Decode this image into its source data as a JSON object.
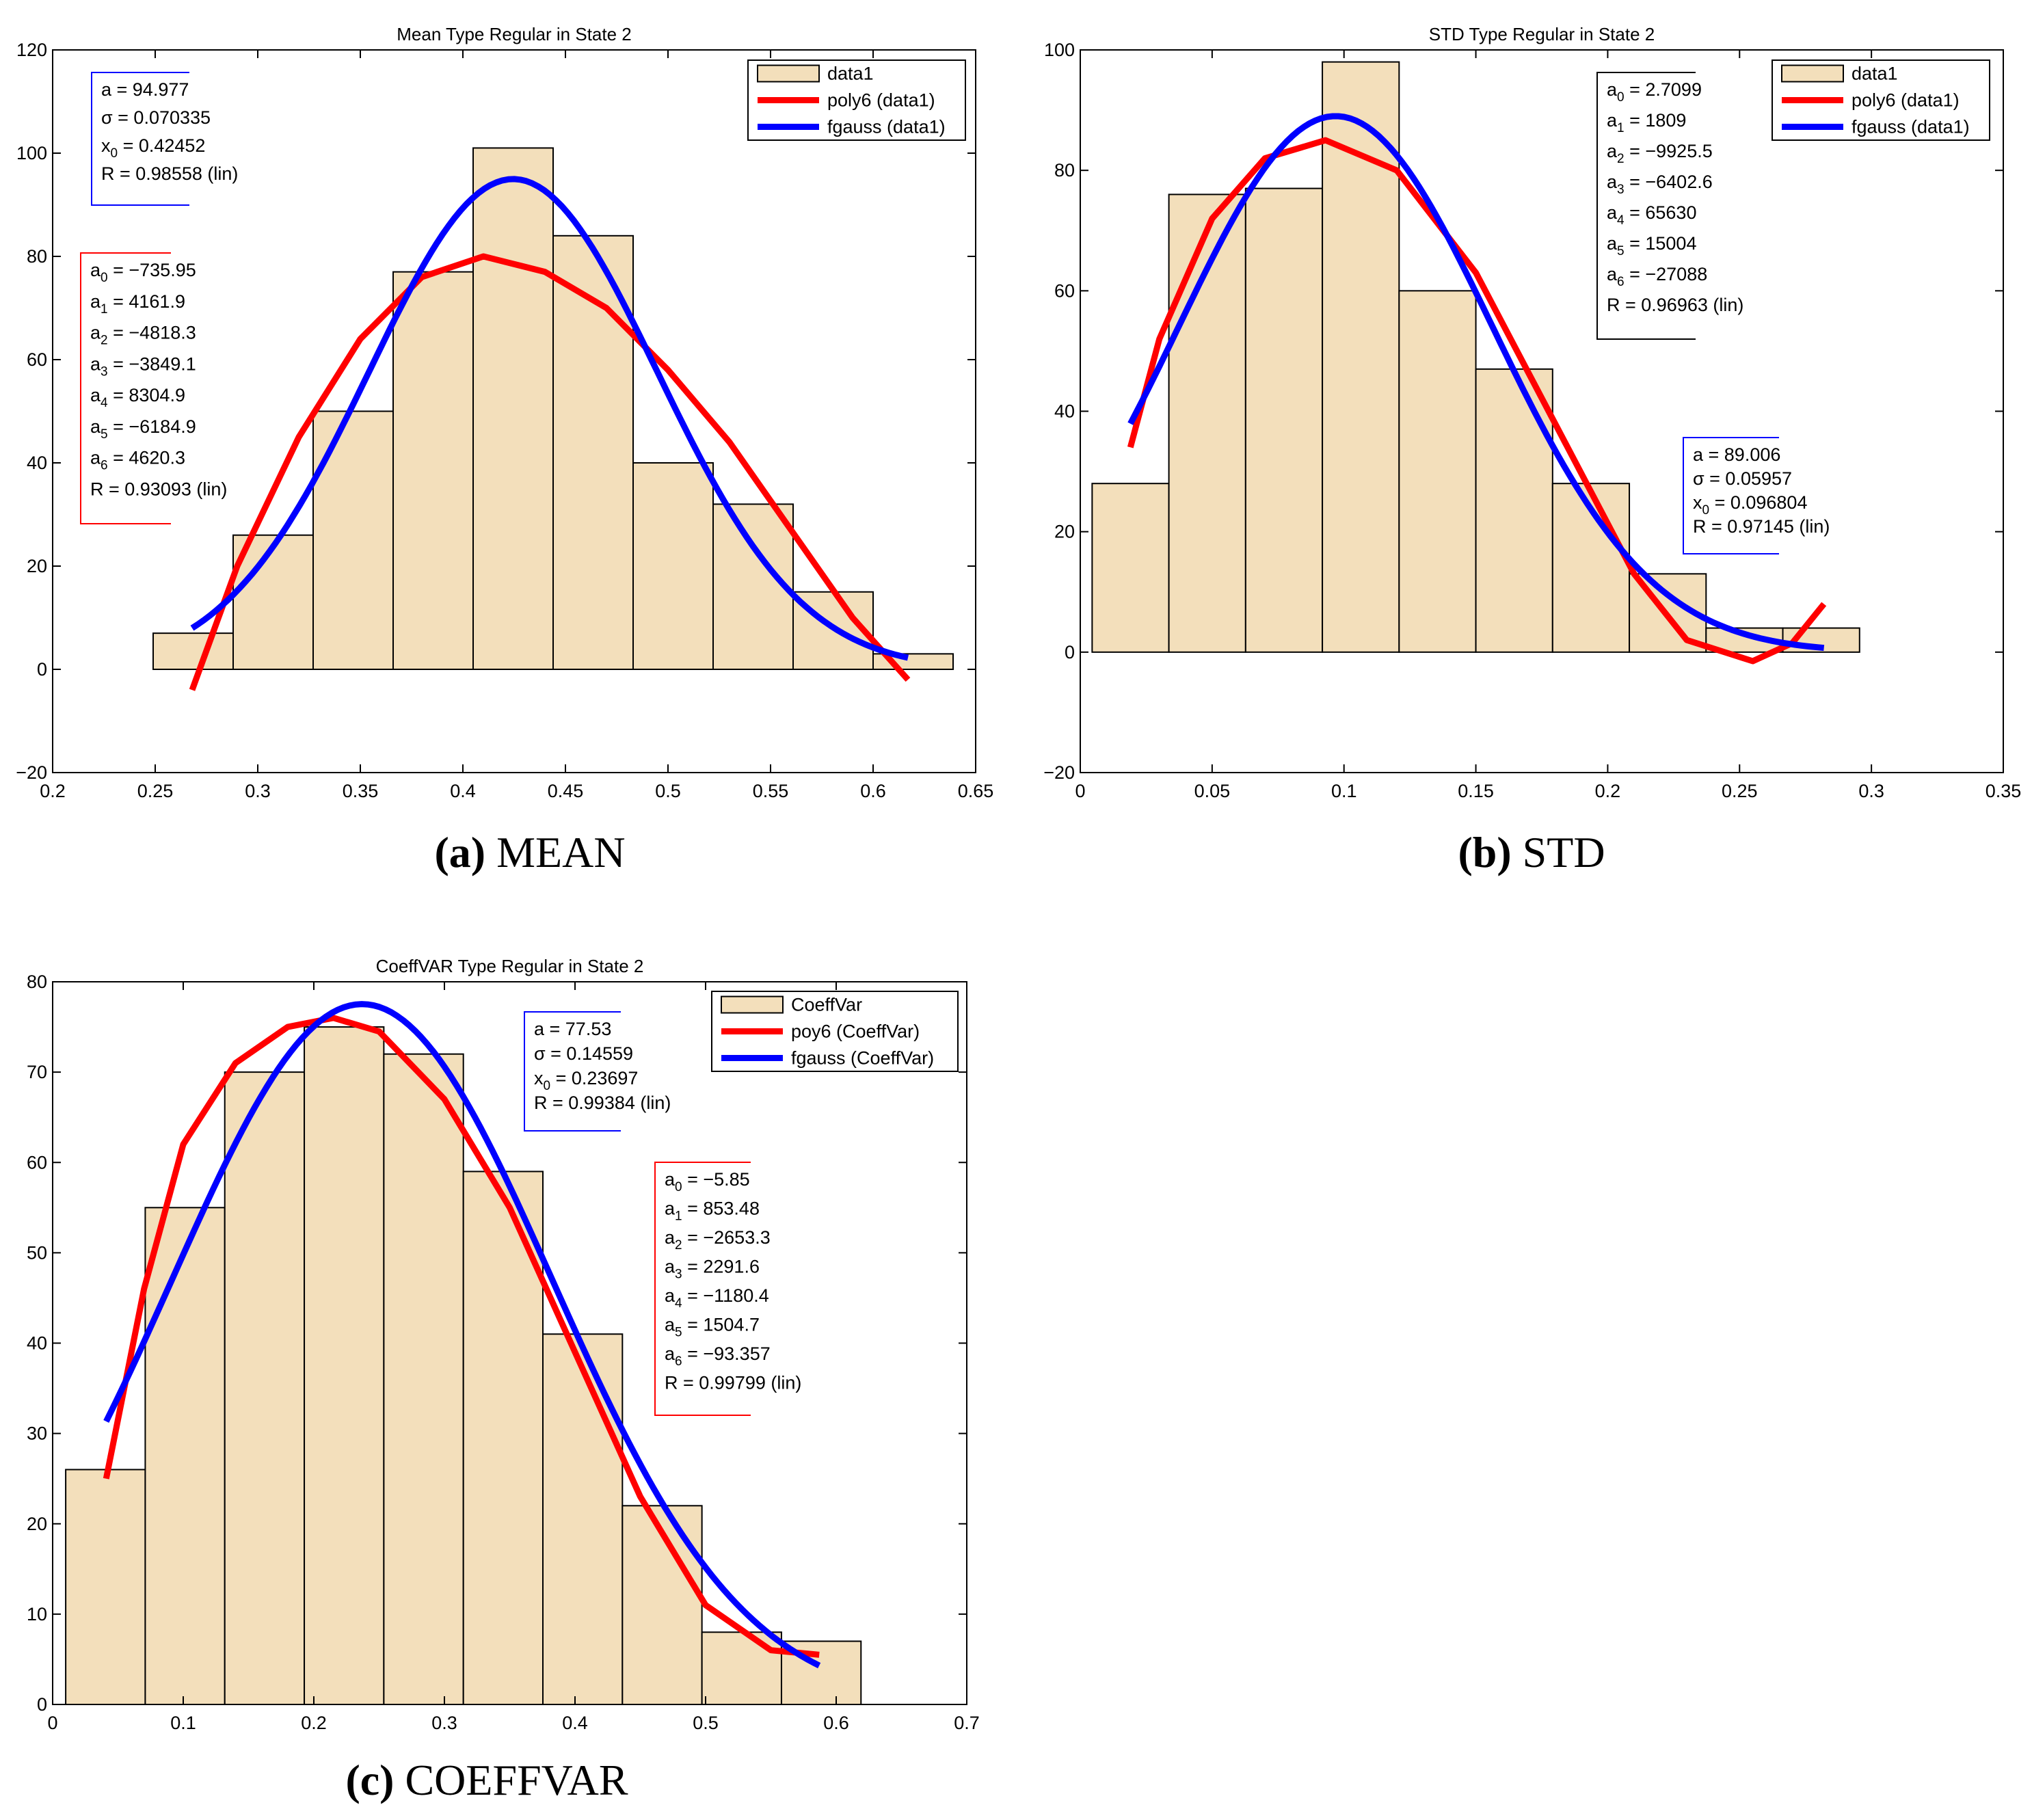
{
  "figure": {
    "captions": [
      {
        "label": "(a)",
        "text": " MEAN"
      },
      {
        "label": "(b)",
        "text": " STD"
      },
      {
        "label": "(c)",
        "text": " COEFFVAR"
      }
    ]
  },
  "colors": {
    "bar_fill": "#f3dfbb",
    "poly": "#ff0000",
    "gauss": "#0000ff",
    "axis": "#000000"
  },
  "chart_data": [
    {
      "type": "bar",
      "title": "Mean Type Regular in State 2",
      "bin_edges": [
        0.249,
        0.288,
        0.327,
        0.366,
        0.405,
        0.444,
        0.483,
        0.522,
        0.561,
        0.6,
        0.639
      ],
      "values": [
        7,
        26,
        50,
        77,
        101,
        84,
        40,
        32,
        15,
        3
      ],
      "xlim": [
        0.2,
        0.65
      ],
      "ylim": [
        -20,
        120
      ],
      "xticks": [
        0.2,
        0.25,
        0.3,
        0.35,
        0.4,
        0.45,
        0.5,
        0.55,
        0.6,
        0.65
      ],
      "xticklabels": [
        "0.2",
        "0.25",
        "0.3",
        "0.35",
        "0.4",
        "0.45",
        "0.5",
        "0.55",
        "0.6",
        "0.65"
      ],
      "yticks": [
        -20,
        0,
        20,
        40,
        60,
        80,
        100,
        120
      ],
      "yticklabels": [
        "−20",
        "0",
        "20",
        "40",
        "60",
        "80",
        "100",
        "120"
      ],
      "legend": {
        "placement": "top-right",
        "entries": [
          "data1",
          "poly6 (data1)",
          "fgauss (data1)"
        ]
      },
      "poly_curve": {
        "x": [
          0.268,
          0.29,
          0.32,
          0.35,
          0.38,
          0.41,
          0.44,
          0.47,
          0.5,
          0.53,
          0.56,
          0.59,
          0.617
        ],
        "y": [
          -4,
          20,
          45,
          64,
          76,
          80,
          77,
          70,
          58,
          44,
          27,
          10,
          -2
        ]
      },
      "gauss_fit": {
        "a": 94.977,
        "sigma": 0.070335,
        "x0": 0.42452,
        "x_range": [
          0.268,
          0.617
        ]
      },
      "annotations": [
        {
          "color": "blue",
          "placement": "top-left",
          "lines": [
            {
              "base": "a = 94.977",
              "sub": "",
              "rest": ""
            },
            {
              "base": "σ = 0.070335",
              "sub": "",
              "rest": ""
            },
            {
              "base": "x",
              "sub": "0",
              "rest": " = 0.42452"
            },
            {
              "base": "R = 0.98558  (lin)",
              "sub": "",
              "rest": ""
            }
          ]
        },
        {
          "color": "red",
          "placement": "mid-left",
          "lines": [
            {
              "base": "a",
              "sub": "0",
              "rest": " = −735.95"
            },
            {
              "base": "a",
              "sub": "1",
              "rest": " = 4161.9"
            },
            {
              "base": "a",
              "sub": "2",
              "rest": " = −4818.3"
            },
            {
              "base": "a",
              "sub": "3",
              "rest": " = −3849.1"
            },
            {
              "base": "a",
              "sub": "4",
              "rest": " = 8304.9"
            },
            {
              "base": "a",
              "sub": "5",
              "rest": " = −6184.9"
            },
            {
              "base": "a",
              "sub": "6",
              "rest": " = 4620.3"
            },
            {
              "base": "R = 0.93093  (lin)",
              "sub": "",
              "rest": ""
            }
          ]
        }
      ]
    },
    {
      "type": "bar",
      "title": "STD Type Regular in State 2",
      "bin_edges": [
        0.0045,
        0.0336,
        0.0627,
        0.0918,
        0.1209,
        0.15,
        0.1791,
        0.2082,
        0.2373,
        0.2664,
        0.2955
      ],
      "values": [
        28,
        76,
        77,
        98,
        60,
        47,
        28,
        13,
        4,
        4
      ],
      "xlim": [
        0,
        0.35
      ],
      "ylim": [
        -20,
        100
      ],
      "xticks": [
        0,
        0.05,
        0.1,
        0.15,
        0.2,
        0.25,
        0.3,
        0.35
      ],
      "xticklabels": [
        "0",
        "0.05",
        "0.1",
        "0.15",
        "0.2",
        "0.25",
        "0.3",
        "0.35"
      ],
      "yticks": [
        -20,
        0,
        20,
        40,
        60,
        80,
        100
      ],
      "yticklabels": [
        "−20",
        "0",
        "20",
        "40",
        "60",
        "80",
        "100"
      ],
      "legend": {
        "placement": "top-right",
        "entries": [
          "data1",
          "poly6 (data1)",
          "fgauss (data1)"
        ]
      },
      "poly_curve": {
        "x": [
          0.019,
          0.03,
          0.05,
          0.07,
          0.093,
          0.12,
          0.15,
          0.18,
          0.21,
          0.23,
          0.255,
          0.27,
          0.282
        ],
        "y": [
          34,
          52,
          72,
          82,
          85,
          80,
          63,
          38,
          13,
          2,
          -1.5,
          1.5,
          8
        ]
      },
      "gauss_fit": {
        "a": 89.006,
        "sigma": 0.05957,
        "x0": 0.096804,
        "x_range": [
          0.019,
          0.282
        ]
      },
      "annotations": [
        {
          "color": "black",
          "placement": "top-center",
          "lines": [
            {
              "base": "a",
              "sub": "0",
              "rest": " = 2.7099"
            },
            {
              "base": "a",
              "sub": "1",
              "rest": " = 1809"
            },
            {
              "base": "a",
              "sub": "2",
              "rest": " = −9925.5"
            },
            {
              "base": "a",
              "sub": "3",
              "rest": " = −6402.6"
            },
            {
              "base": "a",
              "sub": "4",
              "rest": " = 65630"
            },
            {
              "base": "a",
              "sub": "5",
              "rest": " = 15004"
            },
            {
              "base": "a",
              "sub": "6",
              "rest": " = −27088"
            },
            {
              "base": "R = 0.96963  (lin)",
              "sub": "",
              "rest": ""
            }
          ]
        },
        {
          "color": "blue",
          "placement": "mid-right",
          "lines": [
            {
              "base": "a = 89.006",
              "sub": "",
              "rest": ""
            },
            {
              "base": "σ = 0.05957",
              "sub": "",
              "rest": ""
            },
            {
              "base": "x",
              "sub": "0",
              "rest": " = 0.096804"
            },
            {
              "base": "R = 0.97145  (lin)",
              "sub": "",
              "rest": ""
            }
          ]
        }
      ]
    },
    {
      "type": "bar",
      "title": "CoeffVAR Type Regular in State 2",
      "bin_edges": [
        0.01,
        0.0709,
        0.1318,
        0.1927,
        0.2536,
        0.3145,
        0.3754,
        0.4363,
        0.4972,
        0.5581,
        0.619
      ],
      "values": [
        26,
        55,
        70,
        75,
        72,
        59,
        41,
        22,
        8,
        7
      ],
      "xlim": [
        0,
        0.7
      ],
      "ylim": [
        0,
        80
      ],
      "xticks": [
        0,
        0.1,
        0.2,
        0.3,
        0.4,
        0.5,
        0.6,
        0.7
      ],
      "xticklabels": [
        "0",
        "0.1",
        "0.2",
        "0.3",
        "0.4",
        "0.5",
        "0.6",
        "0.7"
      ],
      "yticks": [
        0,
        10,
        20,
        30,
        40,
        50,
        60,
        70,
        80
      ],
      "yticklabels": [
        "0",
        "10",
        "20",
        "30",
        "40",
        "50",
        "60",
        "70",
        "80"
      ],
      "legend": {
        "placement": "top-right",
        "entries": [
          "CoeffVar",
          "poy6 (CoeffVar)",
          "fgauss (CoeffVar)"
        ]
      },
      "poly_curve": {
        "x": [
          0.041,
          0.07,
          0.1,
          0.14,
          0.18,
          0.215,
          0.25,
          0.3,
          0.35,
          0.4,
          0.45,
          0.5,
          0.55,
          0.587
        ],
        "y": [
          25,
          46,
          62,
          71,
          75,
          76,
          74.5,
          67,
          55,
          39,
          23,
          11,
          6,
          5.5
        ]
      },
      "gauss_fit": {
        "a": 77.53,
        "sigma": 0.14559,
        "x0": 0.23697,
        "x_range": [
          0.041,
          0.587
        ]
      },
      "annotations": [
        {
          "color": "blue",
          "placement": "top-center",
          "lines": [
            {
              "base": "a = 77.53",
              "sub": "",
              "rest": ""
            },
            {
              "base": "σ = 0.14559",
              "sub": "",
              "rest": ""
            },
            {
              "base": "x",
              "sub": "0",
              "rest": " = 0.23697"
            },
            {
              "base": "R = 0.99384  (lin)",
              "sub": "",
              "rest": ""
            }
          ]
        },
        {
          "color": "red",
          "placement": "mid-right",
          "lines": [
            {
              "base": "a",
              "sub": "0",
              "rest": " = −5.85"
            },
            {
              "base": "a",
              "sub": "1",
              "rest": " = 853.48"
            },
            {
              "base": "a",
              "sub": "2",
              "rest": " = −2653.3"
            },
            {
              "base": "a",
              "sub": "3",
              "rest": " = 2291.6"
            },
            {
              "base": "a",
              "sub": "4",
              "rest": " = −1180.4"
            },
            {
              "base": "a",
              "sub": "5",
              "rest": " = 1504.7"
            },
            {
              "base": "a",
              "sub": "6",
              "rest": " = −93.357"
            },
            {
              "base": "R = 0.99799  (lin)",
              "sub": "",
              "rest": ""
            }
          ]
        }
      ]
    }
  ]
}
